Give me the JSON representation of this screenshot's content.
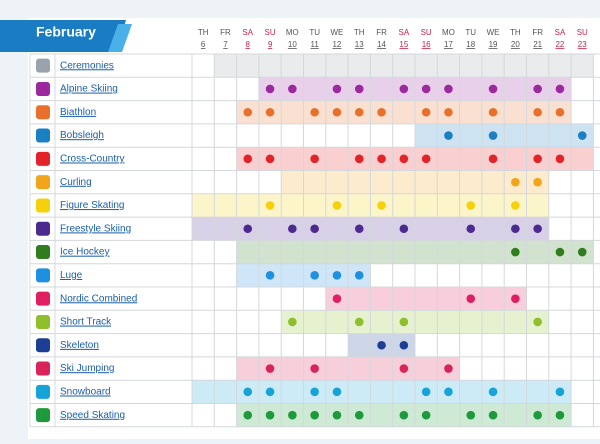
{
  "header": {
    "month": "February"
  },
  "days": [
    {
      "weekday": "TH",
      "date": "6",
      "weekend": false
    },
    {
      "weekday": "FR",
      "date": "7",
      "weekend": false
    },
    {
      "weekday": "SA",
      "date": "8",
      "weekend": true
    },
    {
      "weekday": "SU",
      "date": "9",
      "weekend": true
    },
    {
      "weekday": "MO",
      "date": "10",
      "weekend": false
    },
    {
      "weekday": "TU",
      "date": "11",
      "weekend": false
    },
    {
      "weekday": "WE",
      "date": "12",
      "weekend": false
    },
    {
      "weekday": "TH",
      "date": "13",
      "weekend": false
    },
    {
      "weekday": "FR",
      "date": "14",
      "weekend": false
    },
    {
      "weekday": "SA",
      "date": "15",
      "weekend": true
    },
    {
      "weekday": "SU",
      "date": "16",
      "weekend": true
    },
    {
      "weekday": "MO",
      "date": "17",
      "weekend": false
    },
    {
      "weekday": "TU",
      "date": "18",
      "weekend": false
    },
    {
      "weekday": "WE",
      "date": "19",
      "weekend": false
    },
    {
      "weekday": "TH",
      "date": "20",
      "weekend": false
    },
    {
      "weekday": "FR",
      "date": "21",
      "weekend": false
    },
    {
      "weekday": "SA",
      "date": "22",
      "weekend": true
    },
    {
      "weekday": "SU",
      "date": "23",
      "weekend": true
    }
  ],
  "sports": [
    {
      "name": "Ceremonies",
      "color": "#9aa3ab",
      "span": [
        1,
        17
      ],
      "medals": []
    },
    {
      "name": "Alpine Skiing",
      "color": "#9b2a9e",
      "span": [
        3,
        16
      ],
      "medals": [
        3,
        4,
        6,
        7,
        9,
        10,
        11,
        13,
        15,
        16
      ]
    },
    {
      "name": "Biathlon",
      "color": "#e8702a",
      "span": [
        2,
        16
      ],
      "medals": [
        2,
        3,
        5,
        6,
        7,
        8,
        10,
        11,
        13,
        15,
        16
      ]
    },
    {
      "name": "Bobsleigh",
      "color": "#1b7fc4",
      "span": [
        10,
        17
      ],
      "medals": [
        11,
        13,
        17
      ]
    },
    {
      "name": "Cross-Country",
      "color": "#e2242a",
      "span": [
        2,
        17
      ],
      "medals": [
        2,
        3,
        5,
        7,
        8,
        9,
        10,
        13,
        15,
        16
      ]
    },
    {
      "name": "Curling",
      "color": "#f2a51a",
      "span": [
        4,
        15
      ],
      "medals": [
        14,
        15
      ]
    },
    {
      "name": "Figure Skating",
      "color": "#f5d10c",
      "span": [
        0,
        15
      ],
      "medals": [
        3,
        6,
        8,
        12,
        14
      ]
    },
    {
      "name": "Freestyle Skiing",
      "color": "#4b2b8f",
      "span": [
        0,
        15
      ],
      "medals": [
        2,
        4,
        5,
        7,
        9,
        12,
        14,
        15
      ]
    },
    {
      "name": "Ice Hockey",
      "color": "#2f7d1e",
      "span": [
        2,
        17
      ],
      "medals": [
        14,
        16,
        17
      ]
    },
    {
      "name": "Luge",
      "color": "#1f8fe0",
      "span": [
        2,
        7
      ],
      "medals": [
        3,
        5,
        6,
        7
      ]
    },
    {
      "name": "Nordic Combined",
      "color": "#e01f63",
      "span": [
        6,
        14
      ],
      "medals": [
        6,
        12,
        14
      ]
    },
    {
      "name": "Short Track",
      "color": "#8fbf2a",
      "span": [
        4,
        15
      ],
      "medals": [
        4,
        7,
        9,
        15
      ]
    },
    {
      "name": "Skeleton",
      "color": "#1c3f94",
      "span": [
        7,
        9
      ],
      "medals": [
        8,
        9
      ]
    },
    {
      "name": "Ski Jumping",
      "color": "#d8245b",
      "span": [
        2,
        11
      ],
      "medals": [
        3,
        5,
        9,
        11
      ]
    },
    {
      "name": "Snowboard",
      "color": "#16a3d8",
      "span": [
        0,
        16
      ],
      "medals": [
        2,
        3,
        5,
        6,
        10,
        11,
        13,
        16
      ]
    },
    {
      "name": "Speed Skating",
      "color": "#1e9a3c",
      "span": [
        2,
        16
      ],
      "medals": [
        2,
        3,
        4,
        5,
        6,
        7,
        9,
        10,
        12,
        13,
        15,
        16
      ]
    }
  ]
}
